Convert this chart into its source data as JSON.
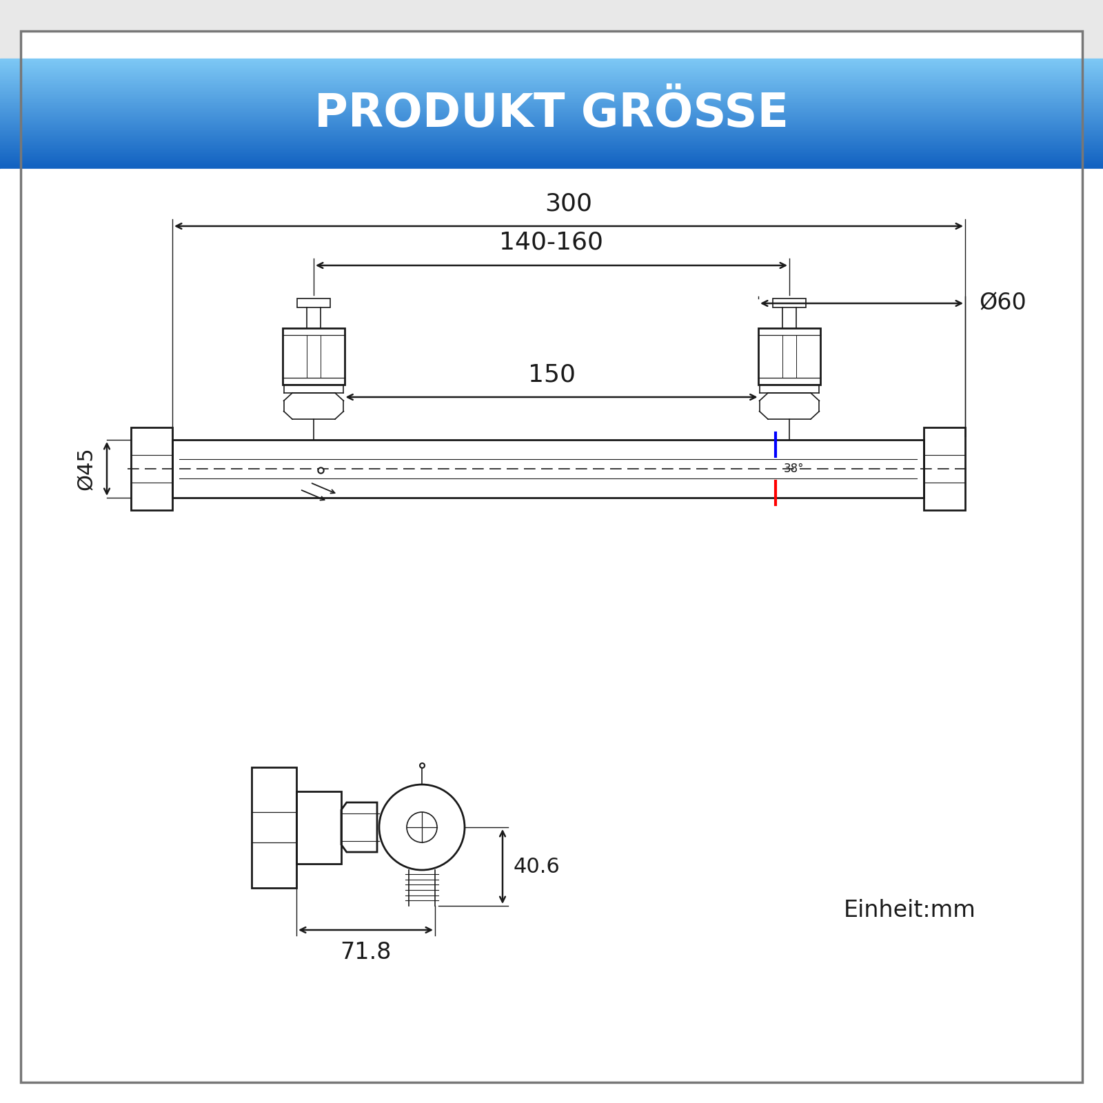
{
  "title": "PRODUKT GRÖSSE",
  "title_text_color": "#ffffff",
  "line_color": "#1a1a1a",
  "background_color": "#ffffff",
  "dim_300": "300",
  "dim_140_160": "140-160",
  "dim_60": "Ø60",
  "dim_45": "Ø45",
  "dim_150": "150",
  "dim_406": "40.6",
  "dim_718": "71.8",
  "einheit": "Einheit:mm",
  "grad_top": "#7dc8f5",
  "grad_bot": "#1060c0"
}
